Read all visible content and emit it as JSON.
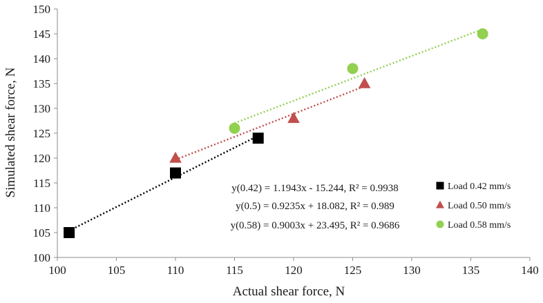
{
  "chart_data": {
    "type": "scatter",
    "title": "",
    "xlabel": "Actual shear force, N",
    "ylabel": "Simulated shear force, N",
    "xlim": [
      100,
      140
    ],
    "ylim": [
      100,
      150
    ],
    "x_ticks": [
      100,
      105,
      110,
      115,
      120,
      125,
      130,
      135,
      140
    ],
    "y_ticks": [
      100,
      105,
      110,
      115,
      120,
      125,
      130,
      135,
      140,
      145,
      150
    ],
    "grid": false,
    "legend_position": "bottom-right",
    "series": [
      {
        "name": "Load 0.42 mm/s",
        "marker": "square",
        "color": "#000000",
        "points": [
          [
            101,
            105
          ],
          [
            110,
            117
          ],
          [
            117,
            124
          ]
        ],
        "trendline": {
          "slope": 1.1943,
          "intercept": -15.244,
          "x_range": [
            101,
            117
          ]
        },
        "equation": "y(0.42) = 1.1943x - 15.244, R² = 0.9938"
      },
      {
        "name": "Load 0.50 mm/s",
        "marker": "triangle",
        "color": "#c0504d",
        "points": [
          [
            110,
            120
          ],
          [
            120,
            128
          ],
          [
            126,
            135
          ]
        ],
        "trendline": {
          "slope": 0.9235,
          "intercept": 18.082,
          "x_range": [
            110,
            126
          ]
        },
        "equation": "y(0.5) = 0.9235x + 18.082, R² = 0.989"
      },
      {
        "name": "Load 0.58 mm/s",
        "marker": "circle",
        "color": "#92d050",
        "points": [
          [
            115,
            126
          ],
          [
            125,
            138
          ],
          [
            136,
            145
          ]
        ],
        "trendline": {
          "slope": 0.9003,
          "intercept": 23.495,
          "x_range": [
            115,
            136
          ]
        },
        "equation": "y(0.58) = 0.9003x + 23.495, R² = 0.9686"
      }
    ]
  }
}
